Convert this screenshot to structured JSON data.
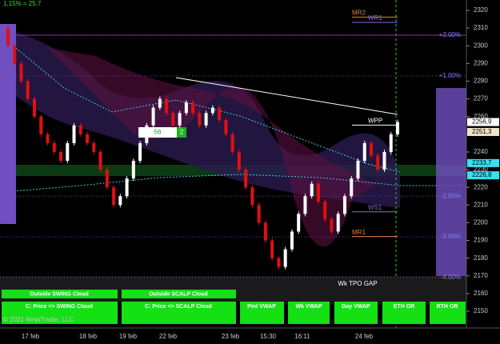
{
  "chart_data": {
    "type": "renko",
    "header": "1,15% = 25,7",
    "ylim": [
      2150,
      2320
    ],
    "yticks": [
      2150,
      2160,
      2170,
      2180,
      2190,
      2200,
      2210,
      2220,
      2230,
      2240,
      2250,
      2260,
      2270,
      2280,
      2290,
      2300,
      2310,
      2320
    ],
    "closes": [
      2300,
      2290,
      2280,
      2270,
      2260,
      2250,
      2245,
      2240,
      2235,
      2245,
      2255,
      2250,
      2245,
      2240,
      2230,
      2220,
      2210,
      2215,
      2225,
      2235,
      2245,
      2255,
      2265,
      2270,
      2262,
      2255,
      2262,
      2268,
      2262,
      2255,
      2262,
      2265,
      2258,
      2250,
      2240,
      2230,
      2220,
      2210,
      2200,
      2190,
      2180,
      2175,
      2185,
      2195,
      2205,
      2215,
      2222,
      2212,
      2202,
      2195,
      2205,
      2215,
      2225,
      2235,
      2245,
      2238,
      2230,
      2240,
      2250,
      2256.9
    ],
    "up_color": "#ffffff",
    "down_color": "#e01010",
    "price_markers": [
      {
        "value": 2256.9,
        "label": "2256,9",
        "color": "#ffffff"
      },
      {
        "value": 2251.3,
        "label": "2251,3",
        "color": "#f3e3c8"
      },
      {
        "value": 2233.7,
        "label": "2233,7",
        "color": "#38e0f0"
      },
      {
        "value": 2226.8,
        "label": "2226,8",
        "color": "#38e0f0"
      }
    ],
    "percent_labels": [
      {
        "value": 2306,
        "label": "+2.00%"
      },
      {
        "value": 2283,
        "label": "+1.00%"
      },
      {
        "value": 2215,
        "label": "-2.00%"
      },
      {
        "value": 2192,
        "label": "-3.00%"
      },
      {
        "value": 2169,
        "label": "-4.00%"
      }
    ],
    "levels": [
      {
        "name": "MR2",
        "value": 2318,
        "color": "#e08040"
      },
      {
        "name": "WR1",
        "value": 2315,
        "color": "#8070e0"
      },
      {
        "name": "WPP",
        "value": 2257,
        "color": "#ffffff"
      },
      {
        "name": "WS1",
        "value": 2208,
        "color": "#8070e0"
      },
      {
        "name": "MR1",
        "value": 2194,
        "color": "#e08040"
      }
    ],
    "categories": [
      "17 feb",
      "18 feb",
      "19 feb",
      "22 feb",
      "23 feb",
      "15:30",
      "16:11",
      "24 feb"
    ],
    "counter": {
      "left": "56",
      "right": "2"
    },
    "gap_label": "Wk TPO GAP",
    "buttons_row1": [
      "Outside SWING Cloud",
      "Outside SCALP Cloud"
    ],
    "buttons_row2": [
      "C: Price <> SWING Cloud",
      "C: Price <> SCALP Cloud",
      "Pmt VWAP",
      "Wk VWAP",
      "Day VWAP",
      "ETH OR",
      "RTH OR"
    ],
    "copyright": "© 2021 NinjaTrader, LLC"
  }
}
